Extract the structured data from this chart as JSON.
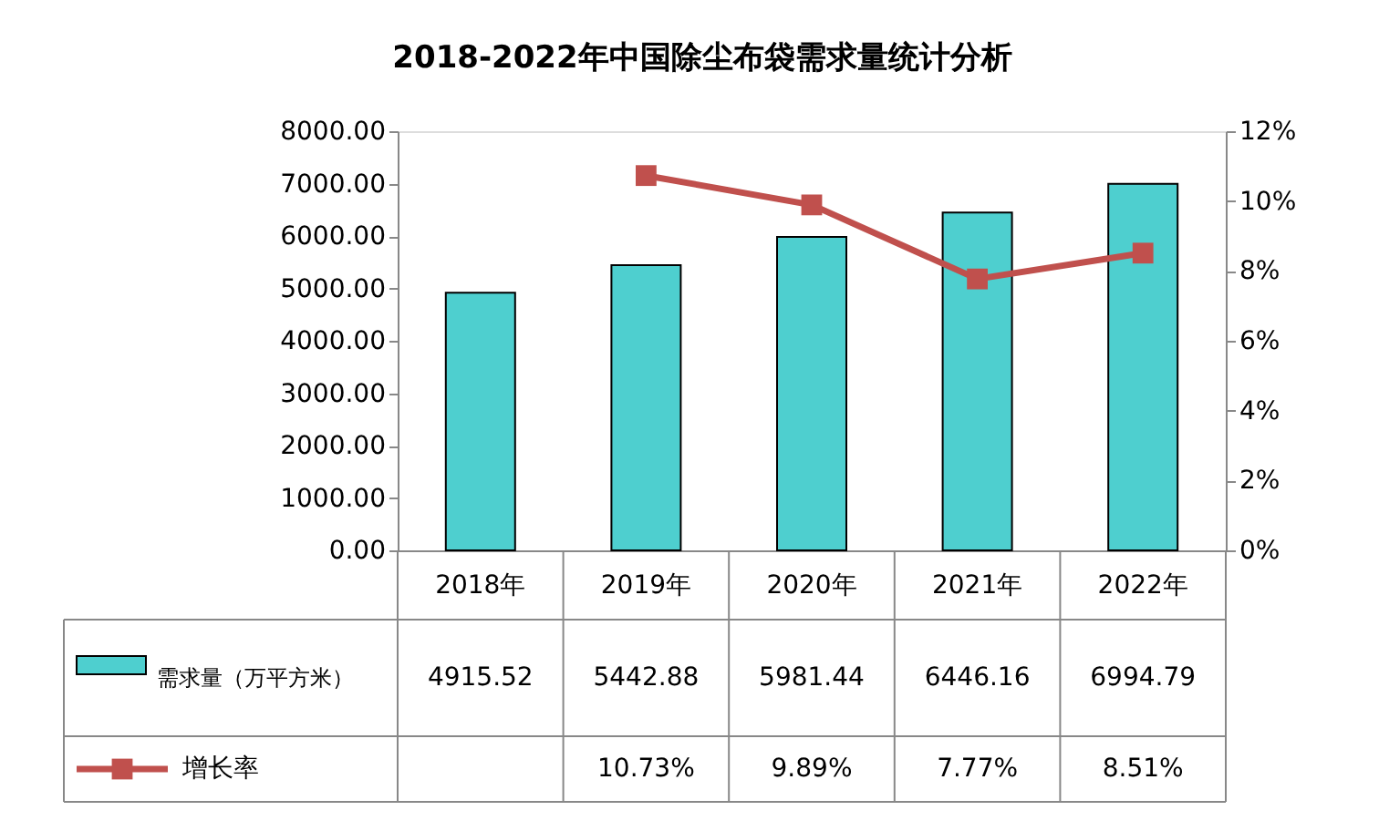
{
  "chart_data": {
    "type": "bar",
    "title": "2018-2022年中国除尘布袋需求量统计分析",
    "categories": [
      "2018年",
      "2019年",
      "2020年",
      "2021年",
      "2022年"
    ],
    "series": [
      {
        "name": "需求量（万平方米）",
        "color": "#4ecfcf",
        "values": [
          4915.52,
          5442.88,
          5981.44,
          6446.16,
          6994.79
        ],
        "value_labels": [
          "4915.52",
          "5442.88",
          "5981.44",
          "6446.16",
          "6994.79"
        ]
      },
      {
        "name": "增长率",
        "type": "line",
        "axis": "y2",
        "color": "#c0504d",
        "marker": "square",
        "values": [
          null,
          10.73,
          9.89,
          7.77,
          8.51
        ],
        "value_labels": [
          null,
          "10.73%",
          "9.89%",
          "7.77%",
          "8.51%"
        ]
      }
    ],
    "ylim": [
      0,
      8000
    ],
    "yticks": [
      {
        "value": 0,
        "label": "0.00"
      },
      {
        "value": 1000,
        "label": "1000.00"
      },
      {
        "value": 2000,
        "label": "2000.00"
      },
      {
        "value": 3000,
        "label": "3000.00"
      },
      {
        "value": 4000,
        "label": "4000.00"
      },
      {
        "value": 5000,
        "label": "5000.00"
      },
      {
        "value": 6000,
        "label": "6000.00"
      },
      {
        "value": 7000,
        "label": "7000.00"
      },
      {
        "value": 8000,
        "label": "8000.00"
      }
    ],
    "y2lim": [
      0,
      12
    ],
    "y2ticks": [
      {
        "value": 0,
        "label": "0%"
      },
      {
        "value": 2,
        "label": "2%"
      },
      {
        "value": 4,
        "label": "4%"
      },
      {
        "value": 6,
        "label": "6%"
      },
      {
        "value": 8,
        "label": "8%"
      },
      {
        "value": 10,
        "label": "10%"
      },
      {
        "value": 12,
        "label": "12%"
      }
    ],
    "grid": false,
    "legend": "bottom"
  }
}
